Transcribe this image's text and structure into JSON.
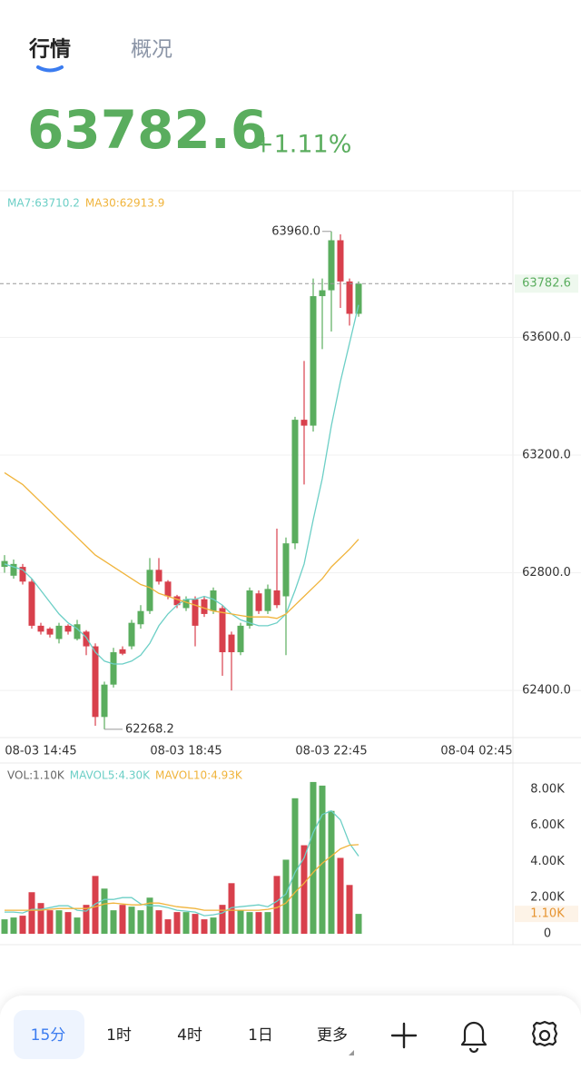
{
  "header": {
    "tabs": [
      "行情",
      "概况"
    ],
    "price": "63782.6",
    "change": "+1.11%"
  },
  "chart_data": [
    {
      "type": "candlestick",
      "legend": [
        "MA7:63710.2",
        "MA30:62913.9"
      ],
      "open": [
        62820,
        62790,
        62820,
        62770,
        62620,
        62610,
        62575,
        62620,
        62575,
        62600,
        62550,
        62310,
        62420,
        62540,
        62550,
        62625,
        62670,
        62810,
        62770,
        62720,
        62680,
        62710,
        62710,
        62670,
        62680,
        62590,
        62530,
        62620,
        62730,
        62670,
        62740,
        62720,
        62900,
        63320,
        63300,
        63740,
        63760,
        63930,
        63790,
        63680
      ],
      "high": [
        62860,
        62845,
        62830,
        62780,
        62630,
        62615,
        62630,
        62625,
        62640,
        62605,
        62560,
        62430,
        62545,
        62550,
        62640,
        62690,
        62850,
        62850,
        62775,
        62725,
        62720,
        62720,
        62720,
        62750,
        62690,
        62600,
        62630,
        62750,
        62740,
        62760,
        62950,
        62920,
        63330,
        63520,
        63800,
        63800,
        63960,
        63950,
        63800,
        63790
      ],
      "low": [
        62800,
        62780,
        62760,
        62610,
        62590,
        62580,
        62560,
        62590,
        62570,
        62520,
        62280,
        62268.2,
        62410,
        62520,
        62540,
        62610,
        62660,
        62760,
        62710,
        62680,
        62670,
        62550,
        62650,
        62660,
        62450,
        62400,
        62520,
        62610,
        62660,
        62660,
        62680,
        62520,
        62880,
        63100,
        63280,
        63560,
        63620,
        63700,
        63640,
        63670
      ],
      "close": [
        62840,
        62830,
        62770,
        62620,
        62600,
        62590,
        62620,
        62600,
        62625,
        62550,
        62310,
        62420,
        62530,
        62525,
        62630,
        62670,
        62810,
        62770,
        62720,
        62690,
        62710,
        62620,
        62660,
        62740,
        62530,
        62530,
        62620,
        62740,
        62670,
        62745,
        62690,
        62900,
        63320,
        63300,
        63740,
        63760,
        63930,
        63790,
        63680,
        63782.6
      ],
      "up_color": "#5aad5e",
      "down_color": "#d8404c",
      "lines": [
        {
          "name": "MA7",
          "color": "#6ccfc6",
          "values": [
            62830,
            62820,
            62810,
            62780,
            62740,
            62700,
            62660,
            62630,
            62610,
            62580,
            62530,
            62500,
            62490,
            62490,
            62500,
            62520,
            62560,
            62620,
            62660,
            62690,
            62710,
            62710,
            62720,
            62710,
            62690,
            62660,
            62640,
            62630,
            62620,
            62620,
            62630,
            62660,
            62740,
            62830,
            62980,
            63120,
            63300,
            63450,
            63580,
            63710.2
          ]
        },
        {
          "name": "MA30",
          "color": "#f0b43c",
          "values": [
            63140,
            63120,
            63100,
            63070,
            63040,
            63010,
            62980,
            62950,
            62920,
            62890,
            62860,
            62840,
            62820,
            62800,
            62780,
            62760,
            62750,
            62730,
            62720,
            62710,
            62700,
            62690,
            62680,
            62670,
            62665,
            62660,
            62655,
            62650,
            62650,
            62650,
            62645,
            62660,
            62690,
            62720,
            62750,
            62780,
            62820,
            62850,
            62880,
            62913.9
          ]
        }
      ],
      "annotations": [
        {
          "value": 63960,
          "label": "63960.0"
        },
        {
          "value": 62268.2,
          "label": "62268.2"
        }
      ],
      "last_price": {
        "value": 63782.6,
        "label": "63782.6"
      },
      "ylim": [
        62240,
        64092
      ],
      "yticks": [
        {
          "value": 62400,
          "label": "62400.0"
        },
        {
          "value": 62800,
          "label": "62800.0"
        },
        {
          "value": 63200,
          "label": "63200.0"
        },
        {
          "value": 63600,
          "label": "63600.0"
        }
      ],
      "xlim": [
        -0.5,
        56
      ],
      "xticks": [
        {
          "value": 4,
          "label": "08-03 14:45"
        },
        {
          "value": 20,
          "label": "08-03 18:45"
        },
        {
          "value": 36,
          "label": "08-03 22:45"
        },
        {
          "value": 52,
          "label": "08-04 02:45"
        }
      ],
      "grid": true
    },
    {
      "type": "volume",
      "legend": [
        "VOL:1.10K",
        "MAVOL5:4.30K",
        "MAVOL10:4.93K"
      ],
      "legend_colors": [
        "#666666",
        "#6ccfc6",
        "#f0b43c"
      ],
      "values": [
        800,
        900,
        1000,
        2300,
        1700,
        1300,
        1300,
        1200,
        900,
        1600,
        3200,
        2500,
        1300,
        1600,
        1500,
        1300,
        2000,
        1300,
        800,
        1200,
        1200,
        1100,
        800,
        900,
        1600,
        2800,
        1300,
        1200,
        1200,
        1200,
        3200,
        4100,
        7500,
        4900,
        8400,
        8200,
        6800,
        4200,
        2700,
        1100
      ],
      "lines": [
        {
          "name": "MAVOL5",
          "color": "#6ccfc6",
          "values": [
            1200,
            1200,
            1150,
            1350,
            1350,
            1450,
            1550,
            1550,
            1300,
            1250,
            1650,
            1900,
            1900,
            2000,
            2000,
            1650,
            1550,
            1550,
            1450,
            1300,
            1250,
            1200,
            1000,
            1050,
            1150,
            1450,
            1500,
            1550,
            1600,
            1500,
            1800,
            2200,
            3400,
            4200,
            5600,
            6600,
            6800,
            6300,
            5000,
            4300
          ]
        },
        {
          "name": "MAVOL10",
          "color": "#f0b43c",
          "values": [
            1300,
            1300,
            1300,
            1300,
            1300,
            1350,
            1400,
            1400,
            1400,
            1400,
            1500,
            1650,
            1700,
            1650,
            1600,
            1600,
            1700,
            1700,
            1600,
            1500,
            1450,
            1400,
            1300,
            1300,
            1300,
            1300,
            1300,
            1300,
            1300,
            1350,
            1450,
            1700,
            2300,
            2800,
            3400,
            3900,
            4300,
            4700,
            4900,
            4930
          ]
        }
      ],
      "last_value": {
        "value": 1100,
        "label": "1.10K"
      },
      "ylim": [
        0,
        9200
      ],
      "yticks": [
        0,
        {
          "value": 2000,
          "label": "2.00K"
        },
        {
          "value": 4000,
          "label": "4.00K"
        },
        {
          "value": 6000,
          "label": "6.00K"
        },
        {
          "value": 8000,
          "label": "8.00K"
        }
      ],
      "xlim": [
        -0.5,
        56
      ]
    }
  ],
  "nav": {
    "periods": [
      "15分",
      "1时",
      "4时",
      "1日",
      "更多"
    ]
  }
}
